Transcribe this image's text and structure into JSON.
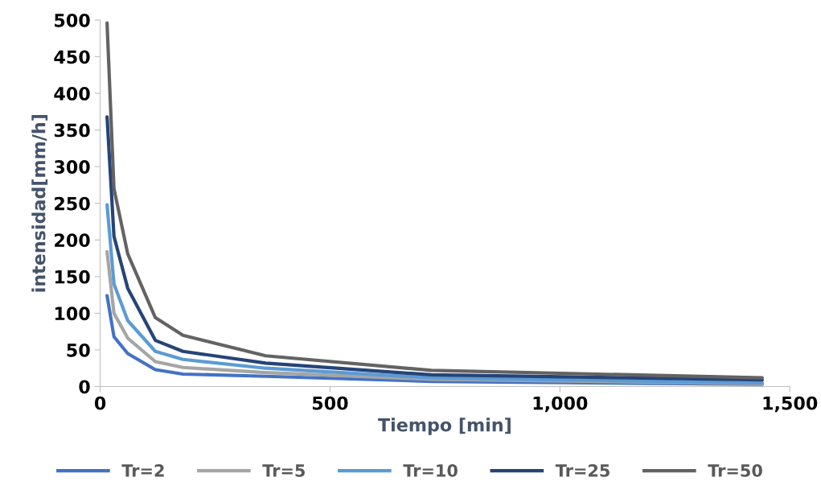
{
  "chart_data": {
    "type": "line",
    "xlabel": "Tiempo [min]",
    "ylabel": "intensidad[mm/h]",
    "x": [
      15,
      30,
      60,
      120,
      180,
      360,
      720,
      1440
    ],
    "series": [
      {
        "name": "Tr=2",
        "color": "#4472c4",
        "values": [
          124,
          68,
          45,
          23,
          17,
          14,
          7,
          3
        ]
      },
      {
        "name": "Tr=5",
        "color": "#a5a5a5",
        "values": [
          184,
          100,
          66,
          34,
          26,
          19,
          10,
          4
        ]
      },
      {
        "name": "Tr=10",
        "color": "#5b9bd5",
        "values": [
          248,
          140,
          90,
          48,
          37,
          25,
          12,
          5
        ]
      },
      {
        "name": "Tr=25",
        "color": "#264478",
        "values": [
          368,
          205,
          134,
          63,
          48,
          32,
          16,
          9
        ]
      },
      {
        "name": "Tr=50",
        "color": "#636363",
        "values": [
          496,
          270,
          181,
          94,
          70,
          42,
          22,
          12
        ]
      }
    ],
    "xlim": [
      0,
      1500
    ],
    "xticks": [
      0,
      500,
      {
        "value": 1000,
        "label": "1,000"
      },
      {
        "value": 1500,
        "label": "1,500"
      }
    ],
    "ylim": [
      0,
      500
    ],
    "yticks": [
      0,
      50,
      100,
      150,
      200,
      250,
      300,
      350,
      400,
      450,
      500
    ],
    "grid": false,
    "legend": "bottom",
    "marker": "none",
    "line_style": "solid"
  }
}
